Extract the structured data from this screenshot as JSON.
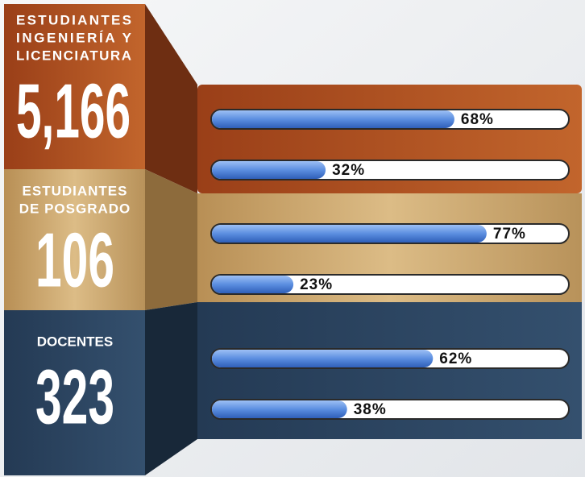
{
  "xlim": [
    0,
    100
  ],
  "sections": [
    {
      "label_lines": [
        "ESTUDIANTES",
        "INGENIERÍA Y",
        "LICENCIATURA"
      ],
      "total": "5,166",
      "bars": [
        {
          "value": 68,
          "label": "68%"
        },
        {
          "value": 32,
          "label": "32%"
        }
      ]
    },
    {
      "label_lines": [
        "ESTUDIANTES",
        "DE POSGRADO"
      ],
      "total": "106",
      "bars": [
        {
          "value": 77,
          "label": "77%"
        },
        {
          "value": 23,
          "label": "23%"
        }
      ]
    },
    {
      "label_lines": [
        "DOCENTES"
      ],
      "total": "323",
      "bars": [
        {
          "value": 62,
          "label": "62%"
        },
        {
          "value": 38,
          "label": "38%"
        }
      ]
    }
  ]
}
